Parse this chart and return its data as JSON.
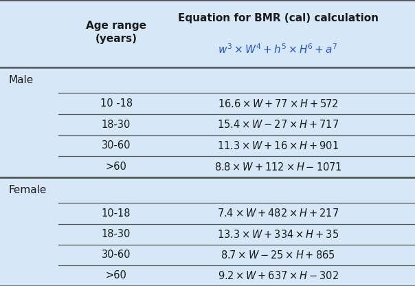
{
  "title_col1": "Age range\n(years)",
  "title_col2": "Equation for BMR (cal) calculation",
  "male_label": "Male",
  "female_label": "Female",
  "male_rows": [
    [
      "10 -18",
      "$16.6 \\times W + 77 \\times H + 572$"
    ],
    [
      "18-30",
      "$15.4 \\times W - 27 \\times H + 717$"
    ],
    [
      "30-60",
      "$11.3 \\times W + 16 \\times H + 901$"
    ],
    [
      ">60",
      "$8.8 \\times W + 112 \\times H - 1071$"
    ]
  ],
  "female_rows": [
    [
      "10-18",
      "$7.4 \\times W + 482 \\times H + 217$"
    ],
    [
      "18-30",
      "$13.3 \\times W + 334 \\times H + 35$"
    ],
    [
      "30-60",
      "$8.7 \\times W - 25 \\times H + 865$"
    ],
    [
      ">60",
      "$9.2 \\times W + 637 \\times H - 302$"
    ]
  ],
  "bg_color": "#d6e8f7",
  "line_color": "#555555",
  "text_color": "#1a1a1a",
  "blue_color": "#2255cc",
  "figsize": [
    6.04,
    4.16
  ],
  "dpi": 100
}
